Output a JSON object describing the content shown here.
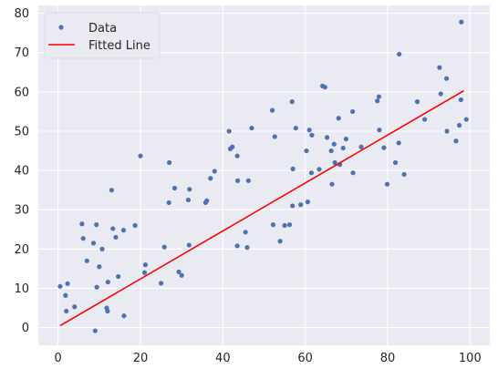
{
  "chart_data": {
    "type": "scatter",
    "xlim": [
      -4.8,
      104.8
    ],
    "ylim": [
      -4.5,
      82
    ],
    "x_ticks": [
      0,
      20,
      40,
      60,
      80,
      100
    ],
    "y_ticks": [
      0,
      10,
      20,
      30,
      40,
      50,
      60,
      70,
      80
    ],
    "grid": true,
    "legend_position": "top-left",
    "colors": {
      "plot_background": "#EAEAF2",
      "grid": "#FFFFFF",
      "points": "#4C72B0",
      "line": "#FF0000"
    },
    "series": [
      {
        "name": "Data",
        "type": "scatter",
        "points": [
          [
            0.5,
            10.5
          ],
          [
            1.8,
            8.2
          ],
          [
            2.0,
            4.2
          ],
          [
            2.3,
            11.2
          ],
          [
            4.0,
            5.3
          ],
          [
            5.8,
            26.4
          ],
          [
            6.1,
            22.7
          ],
          [
            7.0,
            17.0
          ],
          [
            8.6,
            21.5
          ],
          [
            9.0,
            -0.8
          ],
          [
            9.3,
            26.2
          ],
          [
            9.4,
            10.3
          ],
          [
            10.0,
            15.5
          ],
          [
            10.7,
            20.0
          ],
          [
            11.8,
            5.0
          ],
          [
            12.0,
            4.2
          ],
          [
            12.1,
            11.6
          ],
          [
            13.0,
            35.0
          ],
          [
            13.3,
            25.2
          ],
          [
            14.0,
            23.0
          ],
          [
            14.6,
            13.0
          ],
          [
            15.9,
            24.8
          ],
          [
            16.0,
            3.0
          ],
          [
            18.7,
            26.0
          ],
          [
            20.0,
            43.7
          ],
          [
            21.0,
            14.0
          ],
          [
            21.2,
            16.0
          ],
          [
            25.0,
            11.3
          ],
          [
            25.8,
            20.5
          ],
          [
            27.0,
            42.0
          ],
          [
            26.9,
            31.8
          ],
          [
            28.3,
            35.5
          ],
          [
            29.3,
            14.2
          ],
          [
            30.0,
            13.3
          ],
          [
            31.6,
            32.5
          ],
          [
            31.9,
            35.2
          ],
          [
            31.8,
            21.0
          ],
          [
            35.8,
            31.8
          ],
          [
            36.1,
            32.3
          ],
          [
            37.0,
            38.0
          ],
          [
            38.0,
            39.8
          ],
          [
            41.5,
            50.0
          ],
          [
            41.8,
            45.5
          ],
          [
            42.3,
            46.0
          ],
          [
            43.5,
            43.7
          ],
          [
            43.6,
            37.4
          ],
          [
            43.5,
            20.8
          ],
          [
            45.5,
            24.3
          ],
          [
            45.9,
            20.4
          ],
          [
            46.2,
            37.4
          ],
          [
            47.0,
            50.8
          ],
          [
            52.0,
            55.3
          ],
          [
            52.2,
            26.2
          ],
          [
            52.6,
            48.6
          ],
          [
            53.9,
            22.0
          ],
          [
            55.0,
            26.0
          ],
          [
            56.2,
            26.2
          ],
          [
            57.0,
            40.4
          ],
          [
            56.8,
            57.5
          ],
          [
            56.9,
            31.0
          ],
          [
            57.7,
            50.8
          ],
          [
            58.9,
            31.3
          ],
          [
            60.3,
            45.0
          ],
          [
            60.6,
            32.0
          ],
          [
            61.0,
            50.3
          ],
          [
            61.6,
            49.0
          ],
          [
            61.5,
            39.4
          ],
          [
            63.4,
            40.3
          ],
          [
            64.2,
            61.5
          ],
          [
            64.8,
            61.2
          ],
          [
            65.3,
            48.4
          ],
          [
            66.3,
            45.0
          ],
          [
            66.5,
            36.5
          ],
          [
            67.0,
            46.7
          ],
          [
            67.2,
            42.0
          ],
          [
            68.1,
            53.3
          ],
          [
            68.4,
            41.5
          ],
          [
            69.2,
            45.7
          ],
          [
            69.9,
            48.0
          ],
          [
            71.6,
            39.4
          ],
          [
            71.5,
            55.0
          ],
          [
            73.6,
            46.0
          ],
          [
            77.5,
            57.7
          ],
          [
            77.9,
            58.8
          ],
          [
            78.0,
            50.3
          ],
          [
            79.1,
            45.8
          ],
          [
            79.9,
            36.5
          ],
          [
            81.9,
            42.0
          ],
          [
            82.7,
            47.0
          ],
          [
            82.8,
            69.6
          ],
          [
            84.0,
            39.0
          ],
          [
            87.2,
            57.5
          ],
          [
            89.0,
            53.0
          ],
          [
            92.6,
            66.2
          ],
          [
            92.9,
            59.5
          ],
          [
            94.3,
            63.4
          ],
          [
            94.4,
            50.0
          ],
          [
            96.6,
            47.5
          ],
          [
            97.4,
            51.5
          ],
          [
            97.8,
            58.0
          ],
          [
            97.9,
            77.8
          ],
          [
            99.1,
            53.0
          ]
        ]
      },
      {
        "name": "Fitted Line",
        "type": "line",
        "points": [
          [
            0.5,
            0.5
          ],
          [
            98.5,
            60.3
          ]
        ]
      }
    ]
  }
}
